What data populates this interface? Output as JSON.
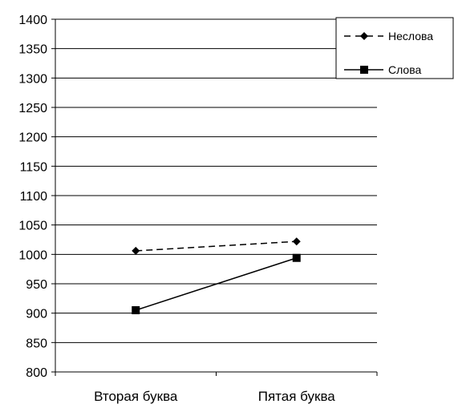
{
  "chart_data": {
    "type": "line",
    "title": "",
    "xlabel": "",
    "ylabel": "",
    "categories": [
      "Вторая буква",
      "Пятая буква"
    ],
    "ylim": [
      800,
      1400
    ],
    "ytick_step": 50,
    "yticks": [
      "800",
      "850",
      "900",
      "950",
      "1000",
      "1050",
      "1100",
      "1150",
      "1200",
      "1250",
      "1300",
      "1350",
      "1400"
    ],
    "grid": "horizontal",
    "legend_position": "top-right",
    "series": [
      {
        "name": "Неслова",
        "values": [
          1006,
          1022
        ],
        "marker": "diamond",
        "line_style": "dashed",
        "color": "#000000"
      },
      {
        "name": "Слова",
        "values": [
          905,
          994
        ],
        "marker": "square",
        "line_style": "solid",
        "color": "#000000"
      }
    ]
  }
}
